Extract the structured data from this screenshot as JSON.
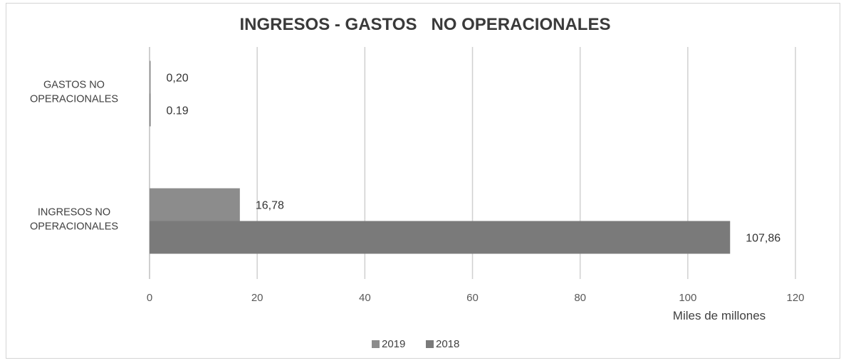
{
  "chart_data": {
    "type": "bar",
    "orientation": "horizontal",
    "title": "INGRESOS - GASTOS   NO OPERACIONALES",
    "xlabel": "Miles de millones",
    "ylabel": "",
    "xlim": [
      0,
      120
    ],
    "x_ticks": [
      "0",
      "20",
      "40",
      "60",
      "80",
      "100",
      "120"
    ],
    "grid": true,
    "legend_position": "bottom",
    "categories": [
      "GASTOS NO OPERACIONALES",
      "INGRESOS NO OPERACIONALES"
    ],
    "category_label_lines": [
      [
        "GASTOS NO",
        "OPERACIONALES"
      ],
      [
        "INGRESOS NO",
        "OPERACIONALES"
      ]
    ],
    "series": [
      {
        "name": "2019",
        "values": [
          0.2,
          16.78
        ],
        "labels": [
          "0,20",
          "16,78"
        ],
        "color": "#8c8c8c"
      },
      {
        "name": "2018",
        "values": [
          0.19,
          107.86
        ],
        "labels": [
          "0.19",
          "107,86"
        ],
        "color": "#7a7a7a"
      }
    ]
  },
  "colors": {
    "gridline": "#d0d0d0",
    "axis": "#bfbfbf",
    "text": "#404040"
  }
}
